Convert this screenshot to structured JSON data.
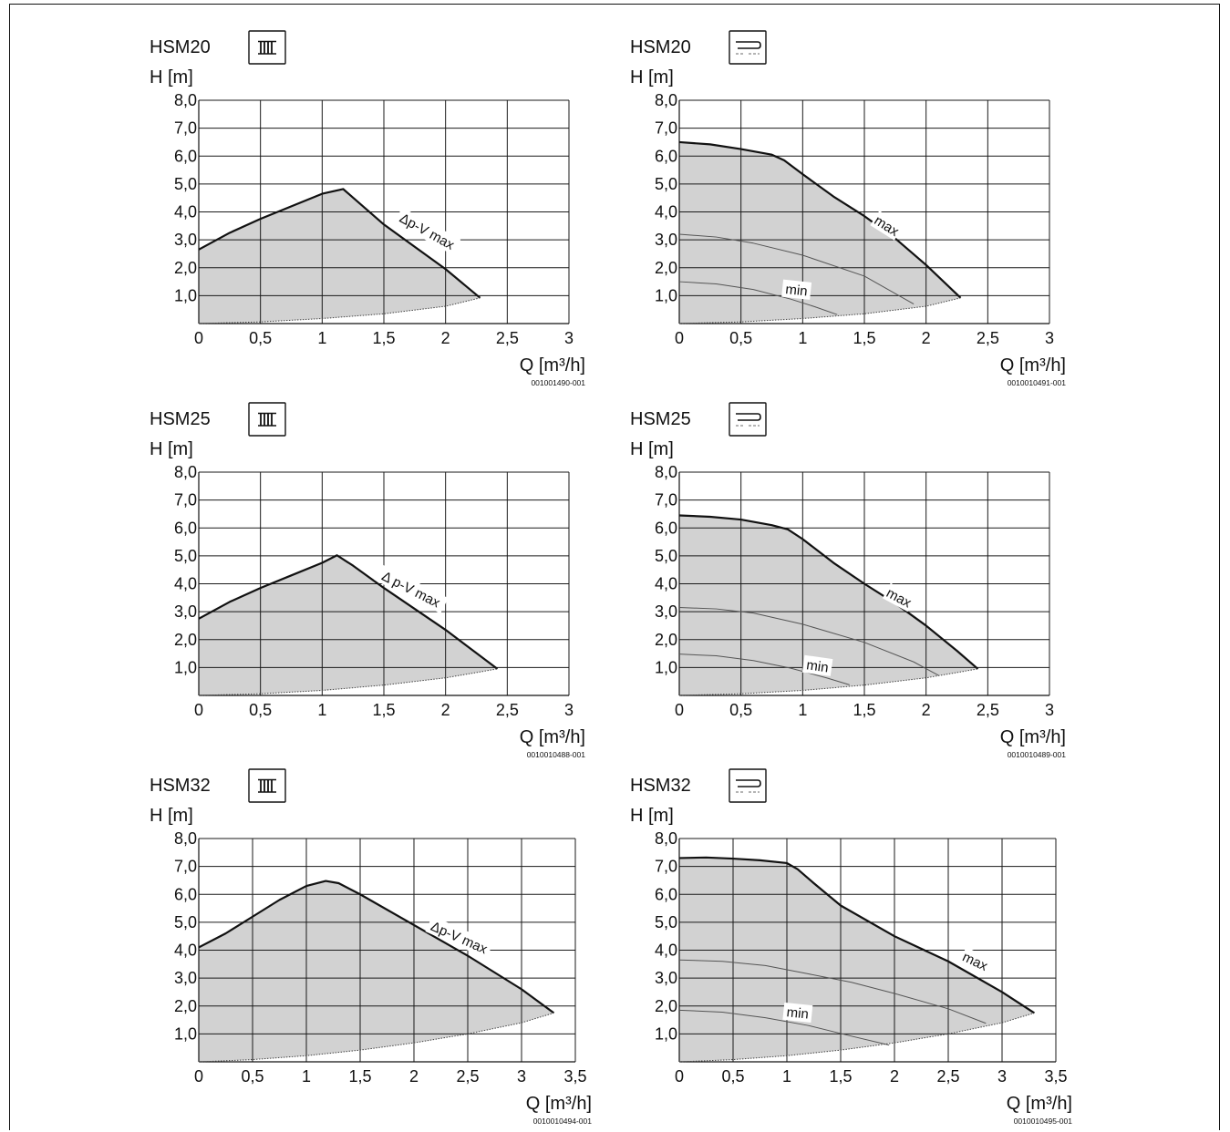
{
  "chart_data": [
    {
      "type": "area",
      "model": "HSM20",
      "mode_icon": "radiator-icon",
      "ylabel": "H [m]",
      "xlabel": "Q [m³/h]",
      "xlim": [
        0,
        3
      ],
      "ylim": [
        0,
        8
      ],
      "xticks": [
        0,
        0.5,
        1,
        1.5,
        2,
        2.5,
        3
      ],
      "xtick_labels": [
        "0",
        "0,5",
        "1",
        "1,5",
        "2",
        "2,5",
        "3"
      ],
      "yticks": [
        1,
        2,
        3,
        4,
        5,
        6,
        7,
        8
      ],
      "ytick_labels": [
        "1,0",
        "2,0",
        "3,0",
        "4,0",
        "5,0",
        "6,0",
        "7,0",
        "8,0"
      ],
      "grid": true,
      "code": "001001490-001",
      "series": [
        {
          "name": "Δp-V max",
          "kind": "max",
          "points": [
            [
              0,
              2.65
            ],
            [
              0.25,
              3.25
            ],
            [
              0.5,
              3.75
            ],
            [
              0.75,
              4.2
            ],
            [
              1.0,
              4.65
            ],
            [
              1.17,
              4.82
            ],
            [
              1.5,
              3.55
            ],
            [
              2.0,
              1.95
            ],
            [
              2.28,
              0.92
            ]
          ]
        },
        {
          "kind": "boundary",
          "points": [
            [
              0,
              0
            ],
            [
              0.5,
              0.06
            ],
            [
              1.0,
              0.18
            ],
            [
              1.5,
              0.35
            ],
            [
              2.0,
              0.62
            ],
            [
              2.28,
              0.92
            ]
          ]
        }
      ],
      "curve_labels": [
        {
          "text": "Δp-V max",
          "x": 1.85,
          "y": 3.3,
          "angle": 29
        }
      ]
    },
    {
      "type": "area",
      "model": "HSM20",
      "mode_icon": "floor-heating-icon",
      "ylabel": "H [m]",
      "xlabel": "Q [m³/h]",
      "xlim": [
        0,
        3
      ],
      "ylim": [
        0,
        8
      ],
      "xticks": [
        0,
        0.5,
        1,
        1.5,
        2,
        2.5,
        3
      ],
      "xtick_labels": [
        "0",
        "0,5",
        "1",
        "1,5",
        "2",
        "2,5",
        "3"
      ],
      "yticks": [
        1,
        2,
        3,
        4,
        5,
        6,
        7,
        8
      ],
      "ytick_labels": [
        "1,0",
        "2,0",
        "3,0",
        "4,0",
        "5,0",
        "6,0",
        "7,0",
        "8,0"
      ],
      "grid": true,
      "code": "0010010491-001",
      "series": [
        {
          "name": "max",
          "kind": "max",
          "points": [
            [
              0,
              6.5
            ],
            [
              0.25,
              6.42
            ],
            [
              0.5,
              6.25
            ],
            [
              0.75,
              6.05
            ],
            [
              0.85,
              5.85
            ],
            [
              1.0,
              5.35
            ],
            [
              1.25,
              4.55
            ],
            [
              1.5,
              3.85
            ],
            [
              1.75,
              3.05
            ],
            [
              2.0,
              2.1
            ],
            [
              2.28,
              0.92
            ]
          ]
        },
        {
          "kind": "mid",
          "points": [
            [
              0,
              3.2
            ],
            [
              0.3,
              3.1
            ],
            [
              0.6,
              2.88
            ],
            [
              1.0,
              2.45
            ],
            [
              1.5,
              1.7
            ],
            [
              1.9,
              0.7
            ]
          ]
        },
        {
          "name": "min",
          "kind": "min",
          "points": [
            [
              0,
              1.5
            ],
            [
              0.3,
              1.42
            ],
            [
              0.6,
              1.22
            ],
            [
              0.9,
              0.88
            ],
            [
              1.1,
              0.6
            ],
            [
              1.28,
              0.32
            ]
          ]
        },
        {
          "kind": "boundary",
          "points": [
            [
              0,
              0
            ],
            [
              0.5,
              0.06
            ],
            [
              1.0,
              0.18
            ],
            [
              1.5,
              0.35
            ],
            [
              2.0,
              0.62
            ],
            [
              2.28,
              0.92
            ]
          ]
        }
      ],
      "curve_labels": [
        {
          "text": "max",
          "x": 1.68,
          "y": 3.5,
          "angle": 32
        },
        {
          "text": "min",
          "x": 0.95,
          "y": 1.2,
          "angle": 6
        }
      ]
    },
    {
      "type": "area",
      "model": "HSM25",
      "mode_icon": "radiator-icon",
      "ylabel": "H [m]",
      "xlabel": "Q [m³/h]",
      "xlim": [
        0,
        3
      ],
      "ylim": [
        0,
        8
      ],
      "xticks": [
        0,
        0.5,
        1,
        1.5,
        2,
        2.5,
        3
      ],
      "xtick_labels": [
        "0",
        "0,5",
        "1",
        "1,5",
        "2",
        "2,5",
        "3"
      ],
      "yticks": [
        1,
        2,
        3,
        4,
        5,
        6,
        7,
        8
      ],
      "ytick_labels": [
        "1,0",
        "2,0",
        "3,0",
        "4,0",
        "5,0",
        "6,0",
        "7,0",
        "8,0"
      ],
      "grid": true,
      "code": "0010010488-001",
      "series": [
        {
          "name": "Δ p-V max",
          "kind": "max",
          "points": [
            [
              0,
              2.75
            ],
            [
              0.25,
              3.35
            ],
            [
              0.5,
              3.85
            ],
            [
              0.75,
              4.3
            ],
            [
              1.0,
              4.75
            ],
            [
              1.12,
              5.02
            ],
            [
              1.25,
              4.65
            ],
            [
              1.5,
              3.85
            ],
            [
              2.0,
              2.35
            ],
            [
              2.42,
              0.95
            ]
          ]
        },
        {
          "kind": "boundary",
          "points": [
            [
              0,
              0
            ],
            [
              0.5,
              0.06
            ],
            [
              1.0,
              0.18
            ],
            [
              1.5,
              0.37
            ],
            [
              2.0,
              0.63
            ],
            [
              2.42,
              0.95
            ]
          ]
        }
      ],
      "curve_labels": [
        {
          "text": "Δ p-V max",
          "x": 1.72,
          "y": 3.8,
          "angle": 27
        }
      ]
    },
    {
      "type": "area",
      "model": "HSM25",
      "mode_icon": "floor-heating-icon",
      "ylabel": "H [m]",
      "xlabel": "Q [m³/h]",
      "xlim": [
        0,
        3
      ],
      "ylim": [
        0,
        8
      ],
      "xticks": [
        0,
        0.5,
        1,
        1.5,
        2,
        2.5,
        3
      ],
      "xtick_labels": [
        "0",
        "0,5",
        "1",
        "1,5",
        "2",
        "2,5",
        "3"
      ],
      "yticks": [
        1,
        2,
        3,
        4,
        5,
        6,
        7,
        8
      ],
      "ytick_labels": [
        "1,0",
        "2,0",
        "3,0",
        "4,0",
        "5,0",
        "6,0",
        "7,0",
        "8,0"
      ],
      "grid": true,
      "code": "0010010489-001",
      "series": [
        {
          "name": "max",
          "kind": "max",
          "points": [
            [
              0,
              6.45
            ],
            [
              0.25,
              6.4
            ],
            [
              0.5,
              6.3
            ],
            [
              0.75,
              6.1
            ],
            [
              0.88,
              5.95
            ],
            [
              1.0,
              5.6
            ],
            [
              1.25,
              4.75
            ],
            [
              1.5,
              4.0
            ],
            [
              1.75,
              3.3
            ],
            [
              2.0,
              2.5
            ],
            [
              2.25,
              1.6
            ],
            [
              2.42,
              0.95
            ]
          ]
        },
        {
          "kind": "mid",
          "points": [
            [
              0,
              3.15
            ],
            [
              0.3,
              3.1
            ],
            [
              0.6,
              2.95
            ],
            [
              1.0,
              2.55
            ],
            [
              1.5,
              1.9
            ],
            [
              1.9,
              1.2
            ],
            [
              2.1,
              0.72
            ]
          ]
        },
        {
          "name": "min",
          "kind": "min",
          "points": [
            [
              0,
              1.48
            ],
            [
              0.3,
              1.42
            ],
            [
              0.6,
              1.25
            ],
            [
              0.9,
              0.98
            ],
            [
              1.2,
              0.62
            ],
            [
              1.38,
              0.38
            ]
          ]
        },
        {
          "kind": "boundary",
          "points": [
            [
              0,
              0
            ],
            [
              0.5,
              0.06
            ],
            [
              1.0,
              0.18
            ],
            [
              1.5,
              0.37
            ],
            [
              2.0,
              0.63
            ],
            [
              2.42,
              0.95
            ]
          ]
        }
      ],
      "curve_labels": [
        {
          "text": "max",
          "x": 1.78,
          "y": 3.5,
          "angle": 28
        },
        {
          "text": "min",
          "x": 1.12,
          "y": 1.05,
          "angle": 8
        }
      ]
    },
    {
      "type": "area",
      "model": "HSM32",
      "mode_icon": "radiator-icon",
      "ylabel": "H [m]",
      "xlabel": "Q [m³/h]",
      "xlim": [
        0,
        3.5
      ],
      "ylim": [
        0,
        8
      ],
      "xticks": [
        0,
        0.5,
        1,
        1.5,
        2,
        2.5,
        3,
        3.5
      ],
      "xtick_labels": [
        "0",
        "0,5",
        "1",
        "1,5",
        "2",
        "2,5",
        "3",
        "3,5"
      ],
      "yticks": [
        1,
        2,
        3,
        4,
        5,
        6,
        7,
        8
      ],
      "ytick_labels": [
        "1,0",
        "2,0",
        "3,0",
        "4,0",
        "5,0",
        "6,0",
        "7,0",
        "8,0"
      ],
      "grid": true,
      "code": "0010010494-001",
      "series": [
        {
          "name": "Δp-V max",
          "kind": "max",
          "points": [
            [
              0,
              4.1
            ],
            [
              0.25,
              4.6
            ],
            [
              0.5,
              5.2
            ],
            [
              0.75,
              5.8
            ],
            [
              1.0,
              6.3
            ],
            [
              1.18,
              6.48
            ],
            [
              1.3,
              6.4
            ],
            [
              1.5,
              6.0
            ],
            [
              2.0,
              4.9
            ],
            [
              2.5,
              3.8
            ],
            [
              3.0,
              2.6
            ],
            [
              3.3,
              1.75
            ]
          ]
        },
        {
          "kind": "boundary",
          "points": [
            [
              0,
              0
            ],
            [
              0.5,
              0.08
            ],
            [
              1.0,
              0.22
            ],
            [
              1.5,
              0.42
            ],
            [
              2.0,
              0.68
            ],
            [
              2.5,
              1.0
            ],
            [
              3.0,
              1.4
            ],
            [
              3.3,
              1.75
            ]
          ]
        }
      ],
      "curve_labels": [
        {
          "text": "Δp-V max",
          "x": 2.42,
          "y": 4.45,
          "angle": 24
        }
      ]
    },
    {
      "type": "area",
      "model": "HSM32",
      "mode_icon": "floor-heating-icon",
      "ylabel": "H [m]",
      "xlabel": "Q [m³/h]",
      "xlim": [
        0,
        3.5
      ],
      "ylim": [
        0,
        8
      ],
      "xticks": [
        0,
        0.5,
        1,
        1.5,
        2,
        2.5,
        3,
        3.5
      ],
      "xtick_labels": [
        "0",
        "0,5",
        "1",
        "1,5",
        "2",
        "2,5",
        "3",
        "3,5"
      ],
      "yticks": [
        1,
        2,
        3,
        4,
        5,
        6,
        7,
        8
      ],
      "ytick_labels": [
        "1,0",
        "2,0",
        "3,0",
        "4,0",
        "5,0",
        "6,0",
        "7,0",
        "8,0"
      ],
      "grid": true,
      "code": "0010010495-001",
      "series": [
        {
          "name": "max",
          "kind": "max",
          "points": [
            [
              0,
              7.3
            ],
            [
              0.25,
              7.32
            ],
            [
              0.5,
              7.28
            ],
            [
              0.75,
              7.22
            ],
            [
              1.0,
              7.12
            ],
            [
              1.1,
              6.9
            ],
            [
              1.25,
              6.4
            ],
            [
              1.5,
              5.6
            ],
            [
              2.0,
              4.5
            ],
            [
              2.5,
              3.6
            ],
            [
              3.0,
              2.5
            ],
            [
              3.3,
              1.75
            ]
          ]
        },
        {
          "kind": "mid",
          "points": [
            [
              0,
              3.65
            ],
            [
              0.4,
              3.6
            ],
            [
              0.8,
              3.45
            ],
            [
              1.2,
              3.15
            ],
            [
              1.6,
              2.85
            ],
            [
              2.0,
              2.45
            ],
            [
              2.5,
              1.9
            ],
            [
              2.85,
              1.38
            ]
          ]
        },
        {
          "name": "min",
          "kind": "min",
          "points": [
            [
              0,
              1.85
            ],
            [
              0.4,
              1.78
            ],
            [
              0.8,
              1.58
            ],
            [
              1.2,
              1.3
            ],
            [
              1.6,
              0.92
            ],
            [
              1.95,
              0.6
            ]
          ]
        },
        {
          "kind": "boundary",
          "points": [
            [
              0,
              0
            ],
            [
              0.5,
              0.08
            ],
            [
              1.0,
              0.22
            ],
            [
              1.5,
              0.42
            ],
            [
              2.0,
              0.68
            ],
            [
              2.5,
              1.0
            ],
            [
              3.0,
              1.4
            ],
            [
              3.3,
              1.75
            ]
          ]
        }
      ],
      "curve_labels": [
        {
          "text": "max",
          "x": 2.75,
          "y": 3.6,
          "angle": 25
        },
        {
          "text": "min",
          "x": 1.1,
          "y": 1.75,
          "angle": 6
        }
      ]
    }
  ]
}
